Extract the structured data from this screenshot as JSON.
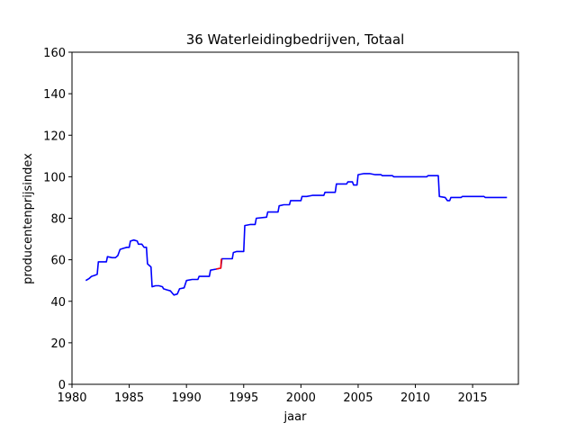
{
  "chart_data": {
    "type": "line",
    "title": "36 Waterleidingbedrijven, Totaal",
    "xlabel": "jaar",
    "ylabel": "producentenprijsindex",
    "xlim": [
      1980,
      2019
    ],
    "ylim": [
      0,
      160
    ],
    "x_ticks": [
      1980,
      1985,
      1990,
      1995,
      2000,
      2005,
      2010,
      2015
    ],
    "y_ticks": [
      0,
      20,
      40,
      60,
      80,
      100,
      120,
      140,
      160
    ],
    "grid": false,
    "series": [
      {
        "color": "#0000ff",
        "points": [
          [
            1981.2,
            50.0
          ],
          [
            1981.5,
            51.0
          ],
          [
            1981.7,
            52.0
          ],
          [
            1982.0,
            52.5
          ],
          [
            1982.2,
            53.0
          ],
          [
            1982.3,
            59.0
          ],
          [
            1982.6,
            59.0
          ],
          [
            1983.0,
            59.0
          ],
          [
            1983.1,
            61.5
          ],
          [
            1983.5,
            61.0
          ],
          [
            1983.8,
            61.0
          ],
          [
            1984.0,
            62.0
          ],
          [
            1984.2,
            65.0
          ],
          [
            1984.5,
            65.5
          ],
          [
            1984.8,
            66.0
          ],
          [
            1985.0,
            66.0
          ],
          [
            1985.1,
            69.0
          ],
          [
            1985.4,
            69.5
          ],
          [
            1985.7,
            69.0
          ],
          [
            1985.8,
            67.5
          ],
          [
            1986.1,
            67.5
          ],
          [
            1986.3,
            66.0
          ],
          [
            1986.5,
            66.0
          ],
          [
            1986.6,
            58.0
          ],
          [
            1986.8,
            57.0
          ],
          [
            1986.9,
            56.5
          ],
          [
            1987.0,
            47.0
          ],
          [
            1987.3,
            47.5
          ],
          [
            1987.6,
            47.5
          ],
          [
            1987.9,
            47.0
          ],
          [
            1988.0,
            46.0
          ],
          [
            1988.3,
            45.5
          ],
          [
            1988.6,
            45.0
          ],
          [
            1988.9,
            43.0
          ],
          [
            1989.2,
            43.5
          ],
          [
            1989.4,
            46.0
          ],
          [
            1989.8,
            46.5
          ],
          [
            1990.0,
            50.0
          ],
          [
            1990.5,
            50.5
          ],
          [
            1991.0,
            50.5
          ],
          [
            1991.1,
            52.0
          ],
          [
            1991.7,
            52.0
          ],
          [
            1992.0,
            52.0
          ],
          [
            1992.1,
            55.0
          ],
          [
            1992.6,
            55.5
          ],
          [
            1993.0,
            56.0
          ],
          [
            1993.1,
            60.5
          ],
          [
            1993.6,
            60.5
          ],
          [
            1994.0,
            60.5
          ],
          [
            1994.1,
            63.5
          ],
          [
            1994.4,
            64.0
          ],
          [
            1995.0,
            64.0
          ],
          [
            1995.1,
            76.5
          ],
          [
            1995.6,
            77.0
          ],
          [
            1996.0,
            77.0
          ],
          [
            1996.1,
            80.0
          ],
          [
            1997.0,
            80.5
          ],
          [
            1997.1,
            83.0
          ],
          [
            1998.0,
            83.0
          ],
          [
            1998.1,
            86.0
          ],
          [
            1998.5,
            86.5
          ],
          [
            1999.0,
            86.5
          ],
          [
            1999.1,
            88.5
          ],
          [
            2000.0,
            88.5
          ],
          [
            2000.1,
            90.5
          ],
          [
            2000.5,
            90.5
          ],
          [
            2001.0,
            91.0
          ],
          [
            2002.0,
            91.0
          ],
          [
            2002.1,
            92.5
          ],
          [
            2003.0,
            92.5
          ],
          [
            2003.1,
            96.5
          ],
          [
            2004.0,
            96.5
          ],
          [
            2004.1,
            97.5
          ],
          [
            2004.5,
            97.5
          ],
          [
            2004.6,
            96.0
          ],
          [
            2004.9,
            96.0
          ],
          [
            2005.0,
            101.0
          ],
          [
            2005.5,
            101.5
          ],
          [
            2006.0,
            101.5
          ],
          [
            2006.5,
            101.0
          ],
          [
            2007.0,
            101.0
          ],
          [
            2007.1,
            100.5
          ],
          [
            2008.0,
            100.5
          ],
          [
            2008.1,
            100.0
          ],
          [
            2009.0,
            100.0
          ],
          [
            2010.0,
            100.0
          ],
          [
            2011.0,
            100.0
          ],
          [
            2011.1,
            100.5
          ],
          [
            2011.5,
            100.5
          ],
          [
            2012.0,
            100.5
          ],
          [
            2012.1,
            90.5
          ],
          [
            2012.6,
            90.0
          ],
          [
            2012.8,
            88.5
          ],
          [
            2013.0,
            88.5
          ],
          [
            2013.1,
            90.0
          ],
          [
            2014.0,
            90.0
          ],
          [
            2014.1,
            90.5
          ],
          [
            2015.0,
            90.5
          ],
          [
            2016.0,
            90.5
          ],
          [
            2016.1,
            90.0
          ],
          [
            2017.0,
            90.0
          ],
          [
            2018.0,
            90.0
          ]
        ]
      },
      {
        "color": "#ff0000",
        "points": [
          [
            1992.6,
            55.5
          ],
          [
            1993.0,
            56.0
          ],
          [
            1993.05,
            60.5
          ]
        ]
      }
    ]
  }
}
